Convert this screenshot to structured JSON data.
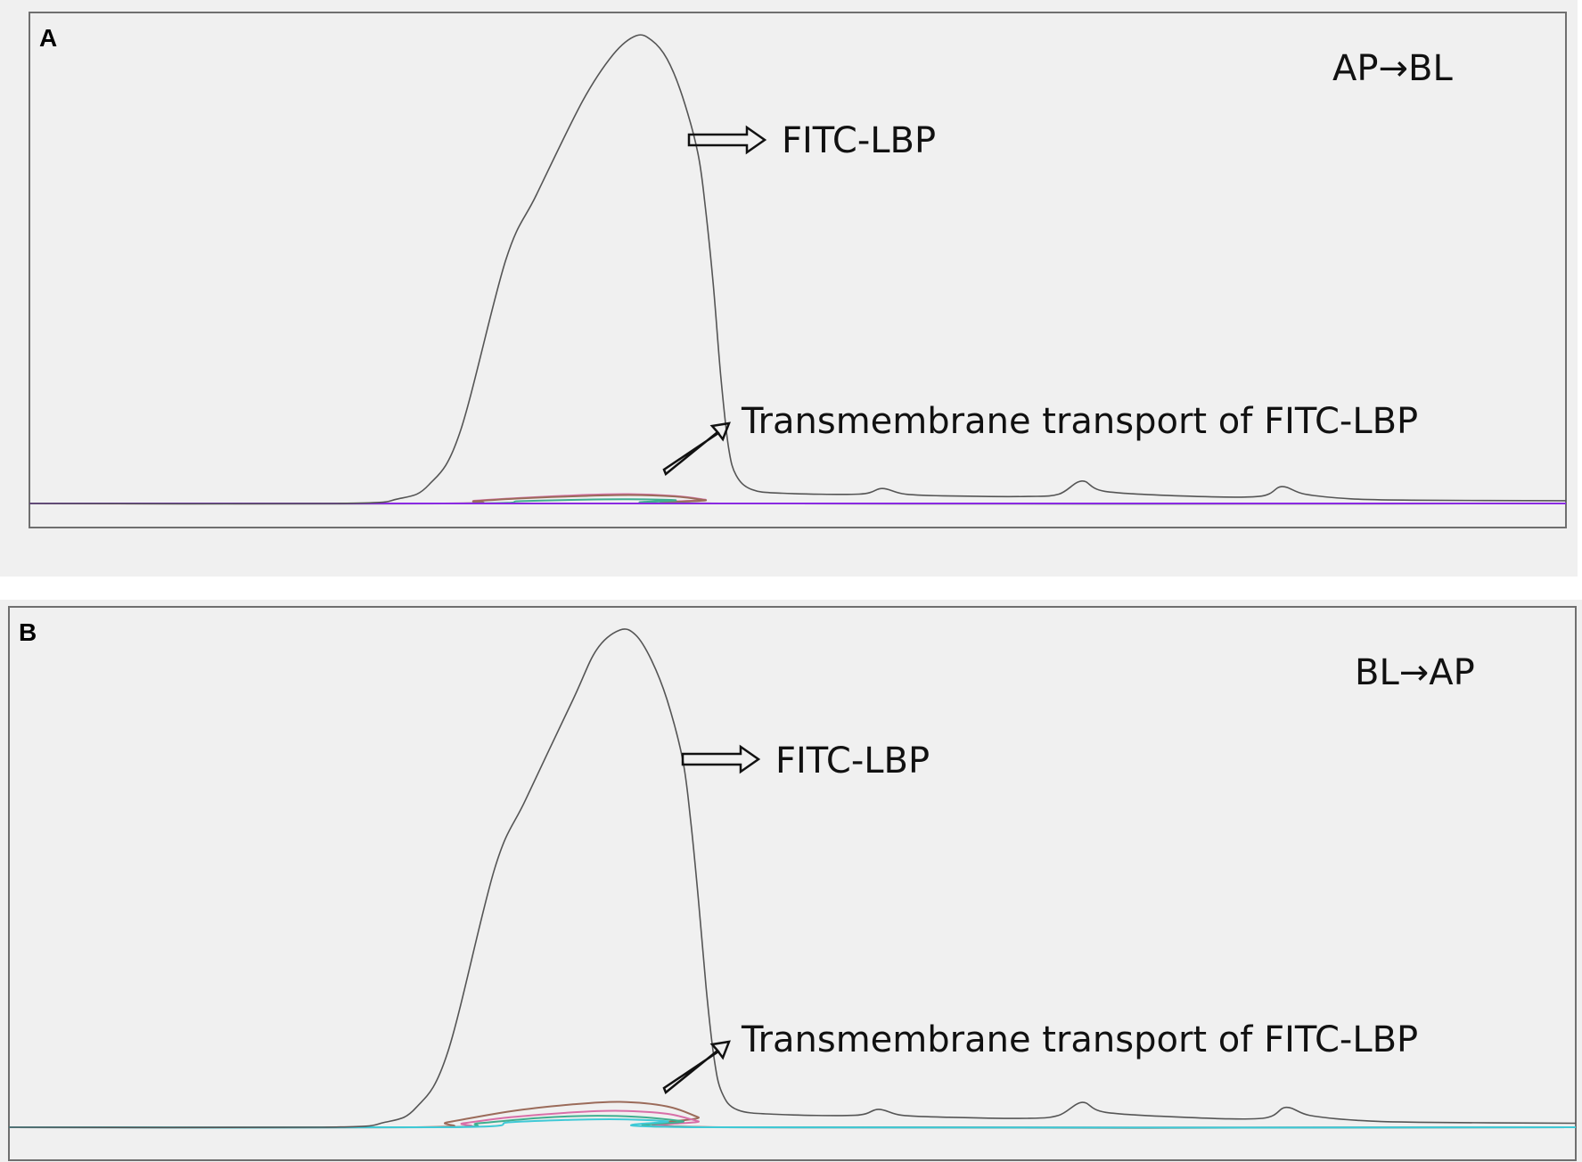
{
  "figure": {
    "panels": [
      {
        "letter": "A",
        "direction": "AP→BL",
        "peak_label": "FITC-LBP",
        "transport_label": "Transmembrane transport of FITC-LBP"
      },
      {
        "letter": "B",
        "direction": "BL→AP",
        "peak_label": "FITC-LBP",
        "transport_label": "Transmembrane transport of FITC-LBP"
      }
    ]
  },
  "colors": {
    "panel_bg": "#f0f0f0",
    "frame": "#6f6f6f",
    "main_trace": "#555555",
    "trace_pink": "#d86fa8",
    "trace_brown": "#9b6b5a",
    "trace_green": "#3fae8f",
    "trace_blue": "#5a6ec8",
    "trace_violet": "#8a2be2",
    "trace_cyan": "#3fc9d6"
  },
  "chart_data": [
    {
      "type": "line",
      "title": "",
      "xlabel": "",
      "ylabel": "",
      "xlim": [
        0,
        100
      ],
      "ylim": [
        0,
        100
      ],
      "grid": false,
      "series": [
        {
          "color_key": "main_trace",
          "x": [
            0,
            20,
            24,
            26,
            28,
            31,
            33,
            36,
            38,
            39.5,
            40.5,
            41.5,
            42.5,
            43.5,
            44,
            44.5,
            45,
            45.5,
            46,
            47,
            49,
            54,
            55.5,
            57,
            60,
            65,
            67,
            68.5,
            70,
            75,
            80,
            81.5,
            83,
            86,
            90,
            100
          ],
          "y": [
            0,
            0,
            1,
            4,
            15,
            52,
            66,
            86,
            96,
            100,
            99,
            95,
            87,
            75,
            63,
            47,
            27,
            12,
            6,
            3,
            2.2,
            2,
            3.2,
            2,
            1.6,
            1.5,
            2,
            4.8,
            2.6,
            1.6,
            1.5,
            3.6,
            2,
            1,
            0.7,
            0.6
          ]
        },
        {
          "color_key": "trace_pink",
          "x": [
            0,
            27,
            29,
            32,
            36,
            39,
            42,
            44,
            45.5,
            100
          ],
          "y": [
            0,
            0,
            0.6,
            1.2,
            1.8,
            2.0,
            1.6,
            0.8,
            0,
            0
          ]
        },
        {
          "color_key": "trace_brown",
          "x": [
            0,
            27,
            29,
            32,
            36,
            39,
            42,
            44,
            45.5,
            100
          ],
          "y": [
            0,
            0,
            0.5,
            1.1,
            1.6,
            1.8,
            1.5,
            0.7,
            0,
            0
          ]
        },
        {
          "color_key": "trace_green",
          "x": [
            0,
            28,
            32,
            36,
            39,
            42,
            44.5,
            100
          ],
          "y": [
            0,
            0,
            0.5,
            0.8,
            0.9,
            0.7,
            0,
            0
          ]
        },
        {
          "color_key": "trace_violet",
          "x": [
            0,
            100
          ],
          "y": [
            0,
            0
          ]
        }
      ]
    },
    {
      "type": "line",
      "title": "",
      "xlabel": "",
      "ylabel": "",
      "xlim": [
        0,
        100
      ],
      "ylim": [
        0,
        100
      ],
      "grid": false,
      "series": [
        {
          "color_key": "main_trace",
          "x": [
            0,
            20,
            24,
            26,
            28,
            31,
            33,
            36,
            37.5,
            39,
            40,
            41,
            42,
            43,
            43.5,
            44,
            44.5,
            45,
            45.5,
            46.5,
            49,
            54,
            55.5,
            57,
            60,
            65,
            67,
            68.5,
            70,
            75,
            80,
            81.5,
            83,
            86,
            90,
            100
          ],
          "y": [
            0,
            0,
            1,
            4,
            15,
            52,
            66,
            86,
            96,
            100,
            99,
            94,
            86,
            74,
            62,
            46,
            28,
            14,
            7,
            3.5,
            2.6,
            2.4,
            3.6,
            2.4,
            2,
            1.8,
            2.4,
            5,
            3,
            2,
            1.8,
            4,
            2.4,
            1.4,
            1,
            0.8
          ]
        },
        {
          "color_key": "trace_brown",
          "x": [
            0,
            26,
            28,
            32,
            36,
            39,
            42,
            44,
            45.5,
            100
          ],
          "y": [
            0,
            0,
            1.0,
            3.2,
            4.6,
            5.1,
            4.2,
            2.0,
            0,
            0
          ]
        },
        {
          "color_key": "trace_pink",
          "x": [
            0,
            27,
            29,
            32,
            36,
            39,
            42,
            44,
            45.5,
            100
          ],
          "y": [
            0,
            0,
            0.8,
            2.0,
            3.0,
            3.3,
            2.7,
            1.2,
            0,
            0
          ]
        },
        {
          "color_key": "trace_green",
          "x": [
            0,
            27,
            30,
            34,
            37,
            40,
            43,
            45,
            100
          ],
          "y": [
            0,
            0,
            0.8,
            1.9,
            2.3,
            2.1,
            1.2,
            0,
            0
          ]
        },
        {
          "color_key": "trace_cyan",
          "x": [
            0,
            28,
            32,
            36,
            39,
            42,
            44.5,
            100
          ],
          "y": [
            0,
            0,
            1.0,
            1.5,
            1.6,
            1.2,
            0,
            0
          ]
        }
      ]
    }
  ]
}
